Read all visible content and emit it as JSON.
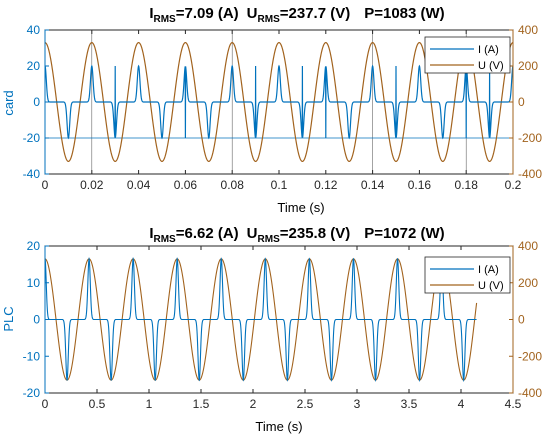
{
  "colors": {
    "current": "#0072BD",
    "voltage": "#A2631E",
    "axis": "#262626",
    "grid": "#000000"
  },
  "chart_data": [
    {
      "type": "line",
      "title_parts": {
        "i_label": "I",
        "i_sub": "RMS",
        "i_value": "=7.09  (A)",
        "u_label": "U",
        "u_sub": "RMS",
        "u_value": "=237.7  (V)",
        "p_value": "P=1083  (W)"
      },
      "xlabel": "Time (s)",
      "ylabel_left": "card",
      "ylabel_right": "",
      "xlim": [
        0,
        0.2
      ],
      "ylim_left": [
        -40,
        40
      ],
      "ylim_right": [
        -400,
        400
      ],
      "xticks": [
        0,
        0.02,
        0.04,
        0.06,
        0.08,
        0.1,
        0.12,
        0.14,
        0.16,
        0.18,
        0.2
      ],
      "xtick_labels": [
        "0",
        "0.02",
        "0.04",
        "0.06",
        "0.08",
        "0.1",
        "0.12",
        "0.14",
        "0.16",
        "0.18",
        "0.2"
      ],
      "yticks_left": [
        -40,
        -20,
        0,
        20,
        40
      ],
      "yticks_right": [
        -400,
        -200,
        0,
        200,
        400
      ],
      "grid_vertical": [
        0.02,
        0.08,
        0.14,
        0.18
      ],
      "grid_horizontal_left": [
        -20
      ],
      "legend_position": "top-right",
      "series": [
        {
          "name": "I (A)",
          "axis": "left",
          "waveform": "current-pulses",
          "peak": 20,
          "frequency_hz": 50,
          "x_end": 0.2
        },
        {
          "name": "U (V)",
          "axis": "right",
          "waveform": "sine",
          "amplitude": 330,
          "frequency_hz": 50,
          "x_end": 0.2
        }
      ]
    },
    {
      "type": "line",
      "title_parts": {
        "i_label": "I",
        "i_sub": "RMS",
        "i_value": "=6.62  (A)",
        "u_label": "U",
        "u_sub": "RMS",
        "u_value": "=235.8  (V)",
        "p_value": "P=1072  (W)"
      },
      "xlabel": "Time (s)",
      "ylabel_left": "PLC",
      "ylabel_right": "",
      "xlim": [
        0,
        4.5
      ],
      "ylim_left": [
        -20,
        20
      ],
      "ylim_right": [
        -400,
        400
      ],
      "xticks": [
        0,
        0.5,
        1,
        1.5,
        2,
        2.5,
        3,
        3.5,
        4,
        4.5
      ],
      "xtick_labels": [
        "0",
        "0.5",
        "1",
        "1.5",
        "2",
        "2.5",
        "3",
        "3.5",
        "4",
        "4.5"
      ],
      "yticks_left": [
        -20,
        -10,
        0,
        10,
        20
      ],
      "yticks_right": [
        -400,
        -200,
        0,
        200,
        400
      ],
      "grid_vertical": [],
      "grid_horizontal_left": [],
      "legend_position": "top-right",
      "series": [
        {
          "name": "I (A)",
          "axis": "left",
          "waveform": "current-pulses",
          "peak": 16.5,
          "frequency_hz": 2.36,
          "x_end": 4.15
        },
        {
          "name": "U (V)",
          "axis": "right",
          "waveform": "sine",
          "amplitude": 330,
          "frequency_hz": 2.36,
          "x_end": 4.15
        }
      ]
    }
  ]
}
